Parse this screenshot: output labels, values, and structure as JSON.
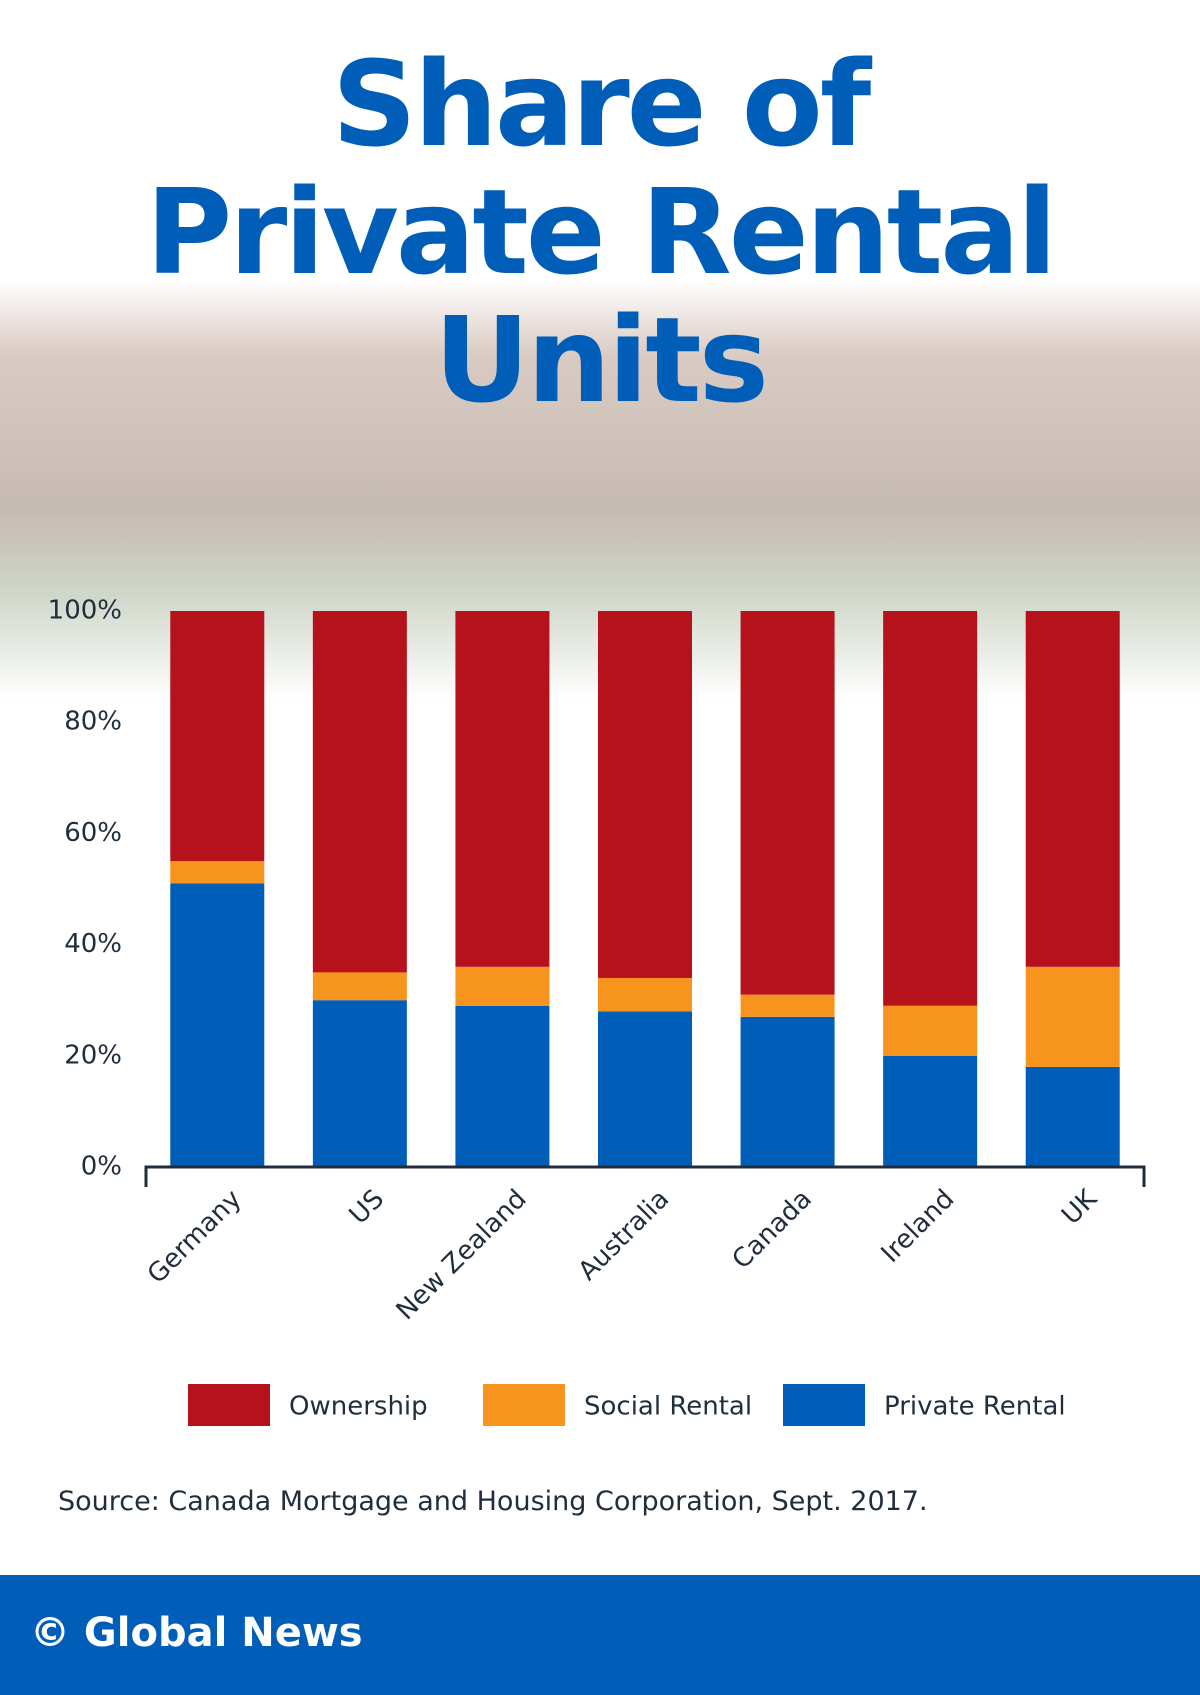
{
  "chart_data": {
    "type": "stacked_bar",
    "title": "Share of Private Rental Units",
    "categories": [
      "Germany",
      "US",
      "New Zealand",
      "Australia",
      "Canada",
      "Ireland",
      "UK"
    ],
    "series": [
      {
        "name": "Private Rental",
        "color": "#005eb8",
        "values": [
          51,
          30,
          29,
          28,
          27,
          20,
          18
        ]
      },
      {
        "name": "Social Rental",
        "color": "#f7941d",
        "values": [
          4,
          5,
          7,
          6,
          4,
          9,
          18
        ]
      },
      {
        "name": "Ownership",
        "color": "#b5121b",
        "values": [
          45,
          65,
          64,
          66,
          69,
          71,
          64
        ]
      }
    ],
    "legend_order": [
      2,
      1,
      0
    ],
    "ylim": [
      0,
      100
    ],
    "yticks": [
      {
        "value": 0,
        "label": "0%"
      },
      {
        "value": 20,
        "label": "20%"
      },
      {
        "value": 40,
        "label": "40%"
      },
      {
        "value": 60,
        "label": "60%"
      },
      {
        "value": 80,
        "label": "80%"
      },
      {
        "value": 100,
        "label": "100%"
      }
    ],
    "source": "Source: Canada Mortgage and Housing Corporation, Sept. 2017.",
    "footer": "© Global News"
  }
}
